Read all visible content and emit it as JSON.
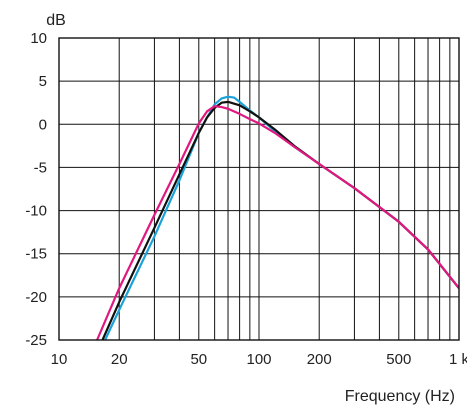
{
  "chart_data": {
    "type": "line",
    "title": "",
    "xlabel": "Frequency (Hz)",
    "ylabel": "dB",
    "x_scale": "log",
    "xlim": [
      10,
      1000
    ],
    "ylim": [
      -25,
      10
    ],
    "grid": true,
    "legend": "none",
    "x_ticks": [
      {
        "value": 10,
        "label": "10"
      },
      {
        "value": 20,
        "label": "20"
      },
      {
        "value": 50,
        "label": "50"
      },
      {
        "value": 100,
        "label": "100"
      },
      {
        "value": 200,
        "label": "200"
      },
      {
        "value": 500,
        "label": "500"
      },
      {
        "value": 1000,
        "label": "1 k"
      }
    ],
    "y_ticks": [
      {
        "value": 10,
        "label": "10"
      },
      {
        "value": 5,
        "label": "5"
      },
      {
        "value": 0,
        "label": "0"
      },
      {
        "value": -5,
        "label": "-5"
      },
      {
        "value": -10,
        "label": "-10"
      },
      {
        "value": -15,
        "label": "-15"
      },
      {
        "value": -20,
        "label": "-20"
      },
      {
        "value": -25,
        "label": "-25"
      }
    ],
    "series": [
      {
        "color": "#1aa3d9",
        "points": [
          [
            17,
            -25
          ],
          [
            20,
            -21.5
          ],
          [
            30,
            -13
          ],
          [
            40,
            -6.5
          ],
          [
            50,
            -1
          ],
          [
            55,
            0.8
          ],
          [
            60,
            2.3
          ],
          [
            65,
            3
          ],
          [
            70,
            3.2
          ],
          [
            75,
            3.1
          ],
          [
            80,
            2.6
          ],
          [
            90,
            1.6
          ],
          [
            100,
            0.8
          ],
          [
            120,
            -0.8
          ],
          [
            150,
            -2.6
          ],
          [
            200,
            -4.6
          ],
          [
            300,
            -7.4
          ],
          [
            500,
            -11.3
          ],
          [
            700,
            -14.5
          ],
          [
            1000,
            -19
          ]
        ]
      },
      {
        "color": "#111111",
        "points": [
          [
            16.5,
            -25
          ],
          [
            20,
            -20.6
          ],
          [
            30,
            -12
          ],
          [
            40,
            -5.8
          ],
          [
            50,
            -1
          ],
          [
            55,
            0.8
          ],
          [
            60,
            1.9
          ],
          [
            65,
            2.5
          ],
          [
            70,
            2.6
          ],
          [
            80,
            2.2
          ],
          [
            90,
            1.5
          ],
          [
            100,
            0.8
          ],
          [
            120,
            -0.6
          ],
          [
            150,
            -2.5
          ],
          [
            200,
            -4.6
          ],
          [
            300,
            -7.4
          ],
          [
            500,
            -11.3
          ],
          [
            700,
            -14.5
          ],
          [
            1000,
            -19
          ]
        ]
      },
      {
        "color": "#e0187f",
        "points": [
          [
            15.5,
            -25
          ],
          [
            20,
            -19
          ],
          [
            30,
            -10.5
          ],
          [
            40,
            -4.6
          ],
          [
            50,
            0.1
          ],
          [
            55,
            1.5
          ],
          [
            60,
            2.1
          ],
          [
            65,
            2
          ],
          [
            70,
            1.8
          ],
          [
            80,
            1.2
          ],
          [
            90,
            0.6
          ],
          [
            100,
            0.1
          ],
          [
            120,
            -1
          ],
          [
            150,
            -2.6
          ],
          [
            200,
            -4.6
          ],
          [
            300,
            -7.4
          ],
          [
            500,
            -11.3
          ],
          [
            700,
            -14.5
          ],
          [
            1000,
            -19
          ]
        ]
      }
    ]
  }
}
